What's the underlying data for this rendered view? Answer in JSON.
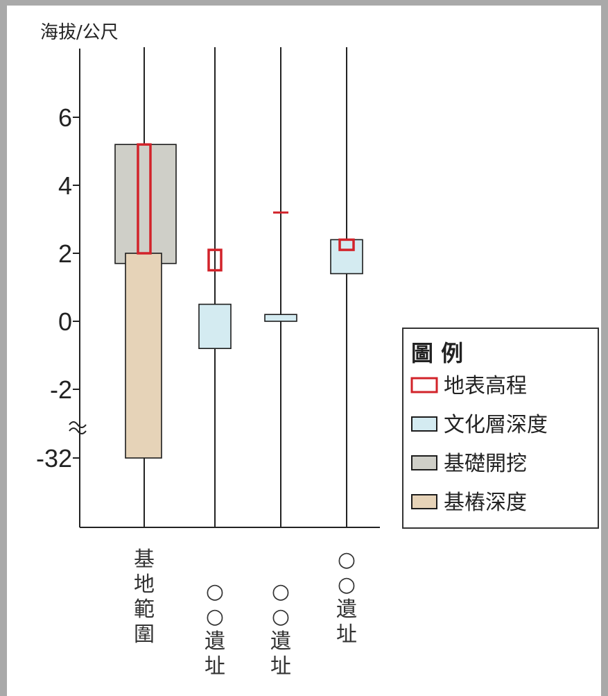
{
  "chart_data": {
    "type": "range-bar",
    "ylabel": "海拔/公尺",
    "y_ticks": [
      "6",
      "4",
      "2",
      "0",
      "-2",
      "-32"
    ],
    "axis_break_between": [
      "-2",
      "-32"
    ],
    "categories": [
      "基地範圍",
      "○○遺址",
      "○○遺址",
      "○○遺址"
    ],
    "series": [
      {
        "name": "地表高程",
        "color": "#d2232a",
        "fill": "none",
        "ranges": [
          [
            2.0,
            5.2
          ],
          [
            1.5,
            2.1
          ],
          [
            3.2,
            3.2
          ],
          [
            2.1,
            2.4
          ]
        ]
      },
      {
        "name": "文化層深度",
        "color": "#1c1c1c",
        "fill": "#d4ebf1",
        "ranges": [
          null,
          [
            -0.8,
            0.5
          ],
          [
            0.0,
            0.2
          ],
          [
            1.4,
            2.4
          ]
        ]
      },
      {
        "name": "基礎開挖",
        "color": "#1c1c1c",
        "fill": "#cfcfc8",
        "ranges": [
          [
            1.7,
            5.2
          ],
          null,
          null,
          null
        ]
      },
      {
        "name": "基樁深度",
        "color": "#1c1c1c",
        "fill": "#e6d3b8",
        "ranges": [
          [
            -32,
            2.0
          ],
          null,
          null,
          null
        ]
      }
    ],
    "legend": {
      "title": "圖 例",
      "position": "right",
      "items": [
        "地表高程",
        "文化層深度",
        "基礎開挖",
        "基樁深度"
      ]
    },
    "grid": false
  }
}
